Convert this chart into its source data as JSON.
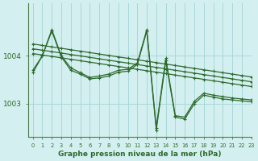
{
  "title": "Graphe pression niveau de la mer (hPa)",
  "background_color": "#d4efef",
  "grid_color": "#a8d8d8",
  "line_color": "#2d6a2d",
  "ylim": [
    1002.3,
    1005.1
  ],
  "xlim": [
    -0.5,
    23
  ],
  "yticks": [
    1003,
    1004
  ],
  "xticks": [
    0,
    1,
    2,
    3,
    4,
    5,
    6,
    7,
    8,
    9,
    10,
    11,
    12,
    13,
    14,
    15,
    16,
    17,
    18,
    19,
    20,
    21,
    22,
    23
  ],
  "series_straight": [
    [
      1004.05,
      1004.02,
      1003.99,
      1003.96,
      1003.93,
      1003.9,
      1003.87,
      1003.84,
      1003.81,
      1003.78,
      1003.75,
      1003.72,
      1003.69,
      1003.66,
      1003.63,
      1003.6,
      1003.57,
      1003.54,
      1003.51,
      1003.48,
      1003.45,
      1003.42,
      1003.39,
      1003.36
    ],
    [
      1004.15,
      1004.12,
      1004.09,
      1004.06,
      1004.03,
      1004.0,
      1003.97,
      1003.94,
      1003.91,
      1003.88,
      1003.85,
      1003.82,
      1003.79,
      1003.76,
      1003.73,
      1003.7,
      1003.67,
      1003.64,
      1003.61,
      1003.58,
      1003.55,
      1003.52,
      1003.49,
      1003.46
    ],
    [
      1004.25,
      1004.22,
      1004.19,
      1004.16,
      1004.13,
      1004.1,
      1004.07,
      1004.04,
      1004.01,
      1003.98,
      1003.95,
      1003.92,
      1003.89,
      1003.86,
      1003.83,
      1003.8,
      1003.77,
      1003.74,
      1003.71,
      1003.68,
      1003.65,
      1003.62,
      1003.59,
      1003.56
    ]
  ],
  "series_variable": [
    [
      1003.7,
      1004.0,
      1004.55,
      1004.0,
      1003.75,
      1003.65,
      1003.55,
      1003.58,
      1003.62,
      1003.7,
      1003.72,
      1003.85,
      1004.55,
      1002.5,
      1003.95,
      1002.75,
      1002.72,
      1003.05,
      1003.22,
      1003.18,
      1003.15,
      1003.12,
      1003.1,
      1003.08
    ],
    [
      1003.65,
      1004.0,
      1004.52,
      1003.98,
      1003.7,
      1003.62,
      1003.52,
      1003.54,
      1003.58,
      1003.66,
      1003.68,
      1003.82,
      1004.52,
      1002.45,
      1003.9,
      1002.72,
      1002.68,
      1003.0,
      1003.18,
      1003.14,
      1003.1,
      1003.08,
      1003.06,
      1003.04
    ]
  ]
}
